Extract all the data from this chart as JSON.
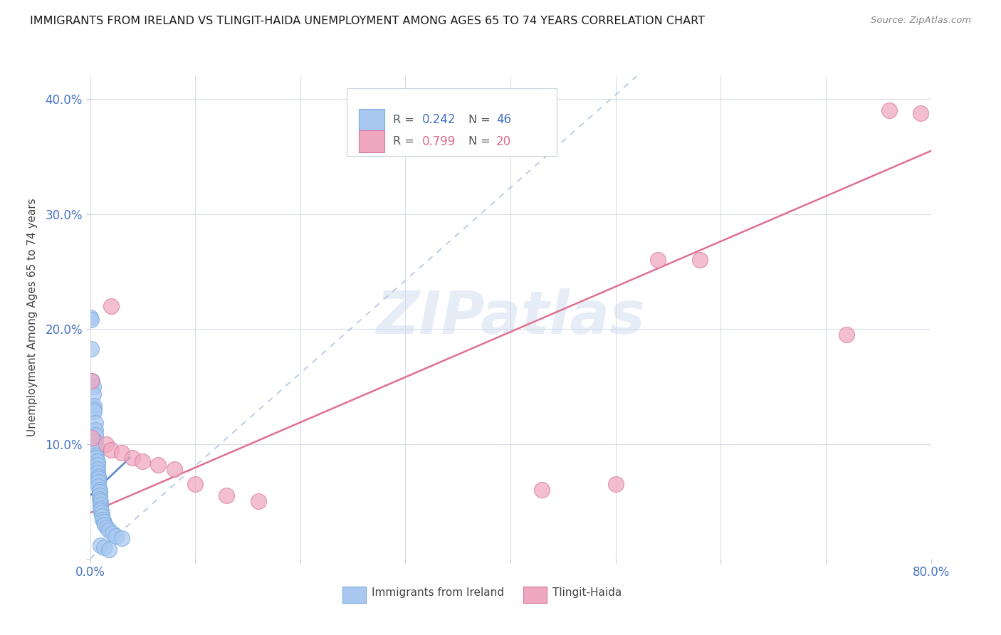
{
  "title": "IMMIGRANTS FROM IRELAND VS TLINGIT-HAIDA UNEMPLOYMENT AMONG AGES 65 TO 74 YEARS CORRELATION CHART",
  "source": "Source: ZipAtlas.com",
  "ylabel": "Unemployment Among Ages 65 to 74 years",
  "xlim": [
    0.0,
    0.8
  ],
  "ylim": [
    0.0,
    0.42
  ],
  "ireland_R": 0.242,
  "ireland_N": 46,
  "tlingit_R": 0.799,
  "tlingit_N": 20,
  "ireland_color": "#a8c8f0",
  "tlingit_color": "#f0a8c0",
  "ireland_edge_color": "#7aaade",
  "tlingit_edge_color": "#d878a0",
  "ireland_line_color": "#5585c8",
  "tlingit_line_color": "#e07090",
  "diagonal_color": "#a0b8d8",
  "watermark": "ZIPatlas",
  "ireland_points": [
    [
      0.0,
      0.21
    ],
    [
      0.001,
      0.208
    ],
    [
      0.001,
      0.183
    ],
    [
      0.002,
      0.155
    ],
    [
      0.003,
      0.15
    ],
    [
      0.003,
      0.143
    ],
    [
      0.004,
      0.133
    ],
    [
      0.004,
      0.13
    ],
    [
      0.004,
      0.128
    ],
    [
      0.005,
      0.118
    ],
    [
      0.005,
      0.112
    ],
    [
      0.005,
      0.108
    ],
    [
      0.005,
      0.102
    ],
    [
      0.006,
      0.098
    ],
    [
      0.006,
      0.095
    ],
    [
      0.006,
      0.09
    ],
    [
      0.006,
      0.088
    ],
    [
      0.007,
      0.085
    ],
    [
      0.007,
      0.082
    ],
    [
      0.007,
      0.078
    ],
    [
      0.007,
      0.075
    ],
    [
      0.008,
      0.072
    ],
    [
      0.008,
      0.07
    ],
    [
      0.008,
      0.067
    ],
    [
      0.008,
      0.063
    ],
    [
      0.009,
      0.06
    ],
    [
      0.009,
      0.058
    ],
    [
      0.009,
      0.055
    ],
    [
      0.009,
      0.052
    ],
    [
      0.01,
      0.05
    ],
    [
      0.01,
      0.047
    ],
    [
      0.01,
      0.044
    ],
    [
      0.01,
      0.042
    ],
    [
      0.011,
      0.04
    ],
    [
      0.011,
      0.037
    ],
    [
      0.012,
      0.034
    ],
    [
      0.013,
      0.032
    ],
    [
      0.014,
      0.03
    ],
    [
      0.016,
      0.027
    ],
    [
      0.018,
      0.025
    ],
    [
      0.021,
      0.022
    ],
    [
      0.025,
      0.02
    ],
    [
      0.03,
      0.018
    ],
    [
      0.01,
      0.012
    ],
    [
      0.013,
      0.01
    ],
    [
      0.018,
      0.008
    ]
  ],
  "tlingit_points": [
    [
      0.001,
      0.155
    ],
    [
      0.002,
      0.105
    ],
    [
      0.02,
      0.22
    ],
    [
      0.015,
      0.1
    ],
    [
      0.02,
      0.095
    ],
    [
      0.03,
      0.092
    ],
    [
      0.04,
      0.088
    ],
    [
      0.05,
      0.085
    ],
    [
      0.065,
      0.082
    ],
    [
      0.08,
      0.078
    ],
    [
      0.1,
      0.065
    ],
    [
      0.13,
      0.055
    ],
    [
      0.16,
      0.05
    ],
    [
      0.43,
      0.06
    ],
    [
      0.5,
      0.065
    ],
    [
      0.54,
      0.26
    ],
    [
      0.58,
      0.26
    ],
    [
      0.72,
      0.195
    ],
    [
      0.76,
      0.39
    ],
    [
      0.79,
      0.388
    ]
  ],
  "tlingit_line_x": [
    0.0,
    0.8
  ],
  "tlingit_line_y": [
    0.04,
    0.355
  ],
  "ireland_line_x": [
    0.0,
    0.038
  ],
  "ireland_line_y": [
    0.055,
    0.088
  ],
  "diag_line_x": [
    0.0,
    0.52
  ],
  "diag_line_y": [
    0.0,
    0.42
  ]
}
